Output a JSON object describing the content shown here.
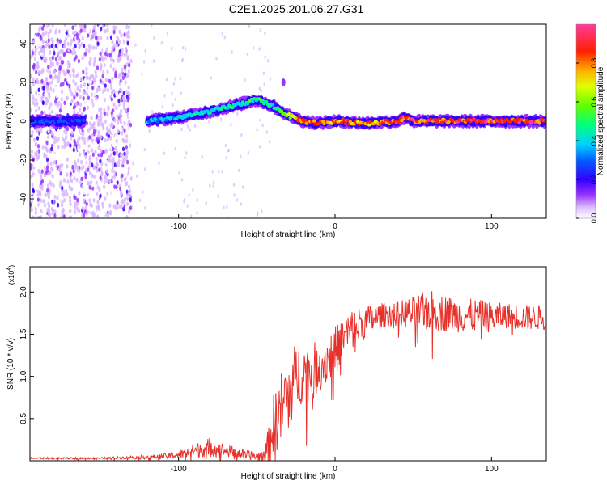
{
  "title": "C2E1.2025.201.06.27.G31",
  "colors": {
    "snr_line": "#e8302a",
    "axis": "#000000",
    "background": "#ffffff"
  },
  "chart_data": [
    {
      "type": "heatmap",
      "name": "spectrogram",
      "xlabel": "Height of straight line (km)",
      "ylabel": "Frequency (Hz)",
      "xlim": [
        -195,
        135
      ],
      "ylim": [
        -50,
        50
      ],
      "x_ticks": [
        -100,
        0,
        100
      ],
      "x_tick_labels": [
        "-100",
        "0",
        "100"
      ],
      "y_ticks": [
        -40,
        -20,
        0,
        20,
        40
      ],
      "y_tick_labels": [
        "-40",
        "-20",
        "0",
        "20",
        "40"
      ],
      "colorbar": {
        "label": "Normalized spectral amplitude",
        "range": [
          0,
          1
        ],
        "ticks": [
          0,
          0.2,
          0.4,
          0.6,
          0.8
        ],
        "tick_labels": [
          "0.0",
          "0.2",
          "0.4",
          "0.6",
          "0.8"
        ],
        "colormap": [
          "#ffffff",
          "#c080ff",
          "#6600ff",
          "#0000ff",
          "#00c0ff",
          "#00ff60",
          "#a0ff00",
          "#ffff00",
          "#ff8000",
          "#ff0000",
          "#ff40a0"
        ]
      },
      "ridge": {
        "x": [
          -195,
          -160,
          -150,
          -132,
          -120,
          -100,
          -80,
          -60,
          -50,
          -40,
          -30,
          -20,
          -10,
          0,
          20,
          40,
          45,
          50,
          60,
          80,
          100,
          120,
          135
        ],
        "freq_hz": [
          0,
          0,
          0,
          0,
          0,
          2,
          5,
          9,
          11,
          8,
          3,
          0,
          -1,
          0,
          -1,
          0,
          2,
          0,
          0,
          0,
          0,
          0,
          0
        ],
        "amplitude": [
          0.3,
          0.3,
          null,
          null,
          0.35,
          0.45,
          0.45,
          0.5,
          0.55,
          0.5,
          0.65,
          0.85,
          0.85,
          0.85,
          0.85,
          0.9,
          0.9,
          0.95,
          0.95,
          0.95,
          0.95,
          0.95,
          0.95
        ]
      },
      "noise_band_x": [
        -195,
        -130
      ]
    },
    {
      "type": "line",
      "name": "snr",
      "xlabel": "Height of straight line (km)",
      "ylabel": "SNR (10 * v/v)",
      "y_multiplier": "(x10",
      "y_multiplier_exp": "4",
      "y_multiplier_close": ")",
      "xlim": [
        -195,
        135
      ],
      "ylim": [
        0,
        2.3
      ],
      "x_ticks": [
        -100,
        0,
        100
      ],
      "x_tick_labels": [
        "-100",
        "0",
        "100"
      ],
      "y_ticks": [
        0.5,
        1.0,
        1.5,
        2.0
      ],
      "y_tick_labels": [
        "0.5",
        "1.0",
        "1.5",
        "2.0"
      ],
      "series": [
        {
          "x": [
            -195,
            -170,
            -150,
            -130,
            -110,
            -100,
            -90,
            -80,
            -70,
            -60,
            -50,
            -45,
            -42,
            -40,
            -35,
            -30,
            -25,
            -20,
            -15,
            -10,
            -5,
            0,
            5,
            10,
            20,
            30,
            40,
            50,
            60,
            70,
            80,
            90,
            100,
            110,
            120,
            135
          ],
          "y": [
            0.03,
            0.03,
            0.03,
            0.04,
            0.05,
            0.07,
            0.12,
            0.16,
            0.12,
            0.08,
            0.05,
            0.08,
            0.2,
            0.4,
            0.6,
            0.8,
            1.0,
            1.05,
            1.05,
            1.12,
            1.2,
            1.3,
            1.45,
            1.55,
            1.65,
            1.72,
            1.75,
            1.75,
            1.78,
            1.75,
            1.72,
            1.72,
            1.7,
            1.72,
            1.7,
            1.7
          ],
          "noise_amplitude": [
            0.01,
            0.01,
            0.01,
            0.02,
            0.03,
            0.05,
            0.08,
            0.12,
            0.08,
            0.06,
            0.05,
            0.1,
            0.25,
            0.35,
            0.45,
            0.45,
            0.4,
            0.35,
            0.35,
            0.3,
            0.3,
            0.3,
            0.25,
            0.25,
            0.2,
            0.15,
            0.15,
            0.2,
            0.25,
            0.22,
            0.2,
            0.2,
            0.18,
            0.15,
            0.15,
            0.15
          ]
        }
      ]
    }
  ]
}
